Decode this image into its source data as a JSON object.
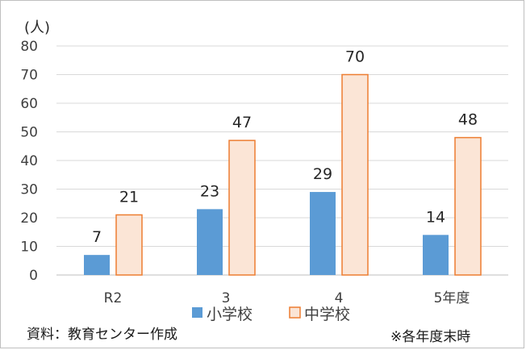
{
  "chart_data": {
    "type": "bar",
    "unit_label": "(人)",
    "categories": [
      "R2",
      "3",
      "4",
      "5年度"
    ],
    "series": [
      {
        "name": "小学校",
        "values": [
          7,
          23,
          29,
          14
        ],
        "fill": "#5b9bd5",
        "stroke": "#5b9bd5"
      },
      {
        "name": "中学校",
        "values": [
          21,
          47,
          70,
          48
        ],
        "fill": "#fbe5d6",
        "stroke": "#ed7d31"
      }
    ],
    "ylim": [
      0,
      80
    ],
    "yticks": [
      0,
      10,
      20,
      30,
      40,
      50,
      60,
      70,
      80
    ],
    "grid": true,
    "legend": "bottom"
  },
  "footer": {
    "source": "資料：教育センター作成",
    "note": "※各年度末時"
  }
}
